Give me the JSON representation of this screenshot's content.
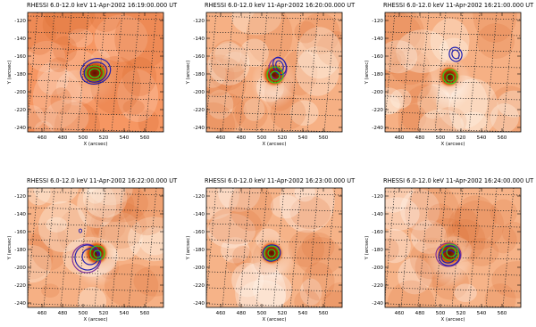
{
  "figure": {
    "axis_labels": {
      "x": "X (arcsec)",
      "y": "Y (arcsec)"
    },
    "x_ticks": [
      "460",
      "480",
      "500",
      "520",
      "540",
      "560"
    ],
    "y_ticks": [
      "-120",
      "-140",
      "-160",
      "-180",
      "-200",
      "-220",
      "-240"
    ],
    "colors": {
      "background_orange": "#f3a774",
      "source_core": "#6b1a00",
      "contour_green": "#22dd22",
      "contour_blue": "#2020b0",
      "contour_purple": "#7a2a9a",
      "grid": "#222222"
    },
    "panels": [
      {
        "title": "RHESSI 6.0-12.0 keV 11-Apr-2002 16:19:00.000 UT",
        "bg_level": 0.85
      },
      {
        "title": "RHESSI 6.0-12.0 keV 11-Apr-2002 16:20:00.000 UT",
        "bg_level": 0.45
      },
      {
        "title": "RHESSI 6.0-12.0 keV 11-Apr-2002 16:21:00.000 UT",
        "bg_level": 0.45
      },
      {
        "title": "RHESSI 6.0-12.0 keV 11-Apr-2002 16:22:00.000 UT",
        "bg_level": 0.45
      },
      {
        "title": "RHESSI 6.0-12.0 keV 11-Apr-2002 16:23:00.000 UT",
        "bg_level": 0.4
      },
      {
        "title": "RHESSI 6.0-12.0 keV 11-Apr-2002 16:24:00.000 UT",
        "bg_level": 0.4
      }
    ]
  }
}
